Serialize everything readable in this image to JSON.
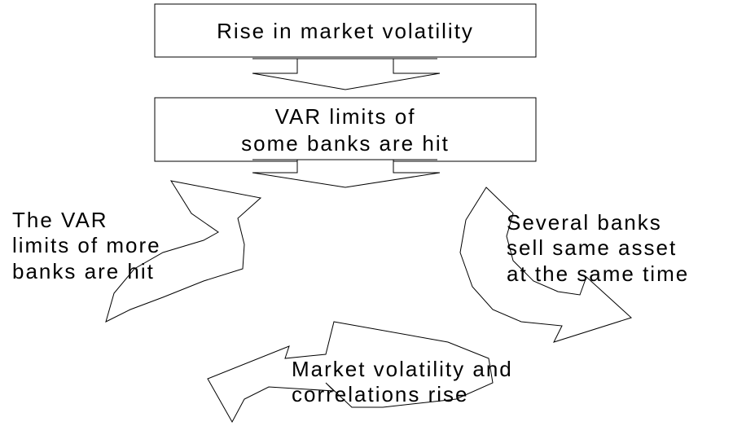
{
  "nodes": [
    {
      "lines": [
        "Rise in market volatility"
      ]
    },
    {
      "lines": [
        "VAR limits of",
        "some banks are hit"
      ]
    },
    {
      "lines": [
        "Several banks",
        "sell same asset",
        "at the same time"
      ]
    },
    {
      "lines": [
        "Market volatility and",
        "correlations rise"
      ]
    },
    {
      "lines": [
        "The VAR",
        "limits of more",
        "banks are hit"
      ]
    }
  ]
}
